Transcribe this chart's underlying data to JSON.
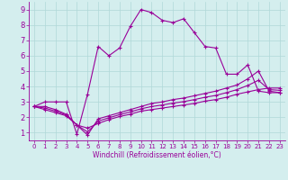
{
  "xlabel": "Windchill (Refroidissement éolien,°C)",
  "background_color": "#d4eeee",
  "grid_color": "#b0d8d8",
  "line_color": "#990099",
  "xlim": [
    -0.5,
    23.5
  ],
  "ylim": [
    0.5,
    9.5
  ],
  "xticks": [
    0,
    1,
    2,
    3,
    4,
    5,
    6,
    7,
    8,
    9,
    10,
    11,
    12,
    13,
    14,
    15,
    16,
    17,
    18,
    19,
    20,
    21,
    22,
    23
  ],
  "yticks": [
    1,
    2,
    3,
    4,
    5,
    6,
    7,
    8,
    9
  ],
  "series1_x": [
    0,
    1,
    2,
    3,
    4,
    5,
    6,
    7,
    8,
    9,
    10,
    11,
    12,
    13,
    14,
    15,
    16,
    17,
    18,
    19,
    20,
    21,
    22,
    23
  ],
  "series1_y": [
    2.7,
    3.0,
    3.0,
    3.0,
    0.9,
    3.5,
    6.6,
    6.0,
    6.5,
    7.9,
    9.0,
    8.8,
    8.3,
    8.15,
    8.4,
    7.5,
    6.6,
    6.5,
    4.8,
    4.8,
    5.4,
    3.7,
    3.6,
    3.6
  ],
  "series2_x": [
    0,
    1,
    2,
    3,
    4,
    5,
    6,
    7,
    8,
    9,
    10,
    11,
    12,
    13,
    14,
    15,
    16,
    17,
    18,
    19,
    20,
    21,
    22,
    23
  ],
  "series2_y": [
    2.7,
    2.5,
    2.3,
    2.1,
    1.5,
    1.3,
    1.6,
    1.85,
    2.05,
    2.2,
    2.4,
    2.5,
    2.6,
    2.7,
    2.8,
    2.9,
    3.05,
    3.15,
    3.3,
    3.5,
    3.65,
    3.8,
    3.9,
    3.9
  ],
  "series3_x": [
    0,
    1,
    2,
    3,
    4,
    5,
    6,
    7,
    8,
    9,
    10,
    11,
    12,
    13,
    14,
    15,
    16,
    17,
    18,
    19,
    20,
    21,
    22,
    23
  ],
  "series3_y": [
    2.7,
    2.7,
    2.5,
    2.2,
    1.5,
    0.85,
    1.9,
    2.1,
    2.3,
    2.5,
    2.7,
    2.9,
    3.0,
    3.15,
    3.25,
    3.4,
    3.55,
    3.7,
    3.9,
    4.1,
    4.5,
    5.0,
    3.7,
    3.6
  ],
  "series4_x": [
    0,
    1,
    2,
    3,
    4,
    5,
    6,
    7,
    8,
    9,
    10,
    11,
    12,
    13,
    14,
    15,
    16,
    17,
    18,
    19,
    20,
    21,
    22,
    23
  ],
  "series4_y": [
    2.7,
    2.6,
    2.4,
    2.15,
    1.5,
    1.05,
    1.75,
    1.97,
    2.17,
    2.35,
    2.55,
    2.7,
    2.8,
    2.92,
    3.02,
    3.15,
    3.3,
    3.42,
    3.6,
    3.8,
    4.07,
    4.4,
    3.8,
    3.75
  ]
}
